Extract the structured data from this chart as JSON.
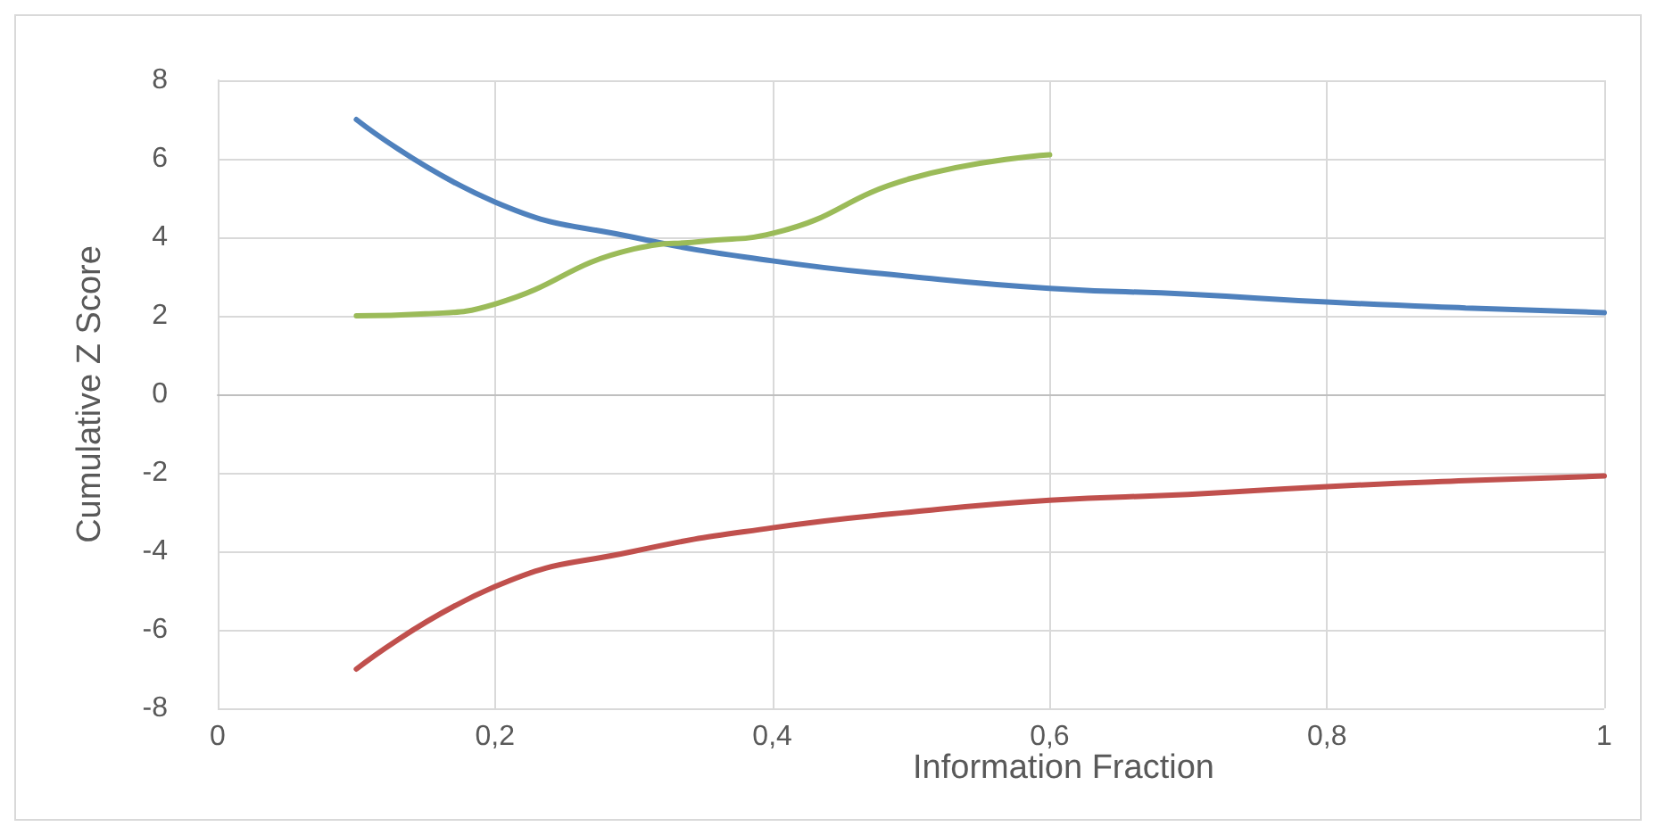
{
  "chart_data": {
    "type": "line",
    "xlabel": "Information Fraction",
    "ylabel": "Cumulative Z Score",
    "xlim": [
      0,
      1
    ],
    "xticks": [
      0,
      {
        "value": 0.2,
        "label": "0,2"
      },
      {
        "value": 0.4,
        "label": "0,4"
      },
      {
        "value": 0.6,
        "label": "0,6"
      },
      {
        "value": 0.8,
        "label": "0,8"
      },
      1
    ],
    "ylim": [
      -8,
      8
    ],
    "yticks": [
      -8,
      -6,
      -4,
      -2,
      0,
      2,
      4,
      6,
      8
    ],
    "grid": true,
    "marker": "none",
    "line_style": "solid",
    "series": [
      {
        "color": "#4f81bd",
        "x": [
          0.1,
          0.2,
          0.3,
          0.4,
          0.5,
          0.6,
          0.7,
          0.8,
          0.9,
          1
        ],
        "values": [
          7.0,
          4.9,
          4.0,
          3.4,
          3.0,
          2.7,
          2.55,
          2.35,
          2.2,
          2.08
        ]
      },
      {
        "color": "#c0504d",
        "x": [
          0.1,
          0.2,
          0.3,
          0.4,
          0.5,
          0.6,
          0.7,
          0.8,
          0.9,
          1
        ],
        "values": [
          -7.0,
          -4.9,
          -4.0,
          -3.4,
          -3.0,
          -2.7,
          -2.55,
          -2.35,
          -2.2,
          -2.08
        ]
      },
      {
        "color": "#9bbb59",
        "x": [
          0.1,
          0.15,
          0.2,
          0.3,
          0.35,
          0.4,
          0.5,
          0.6
        ],
        "values": [
          2.0,
          2.05,
          2.3,
          3.7,
          3.9,
          4.1,
          5.5,
          6.1
        ]
      }
    ]
  }
}
